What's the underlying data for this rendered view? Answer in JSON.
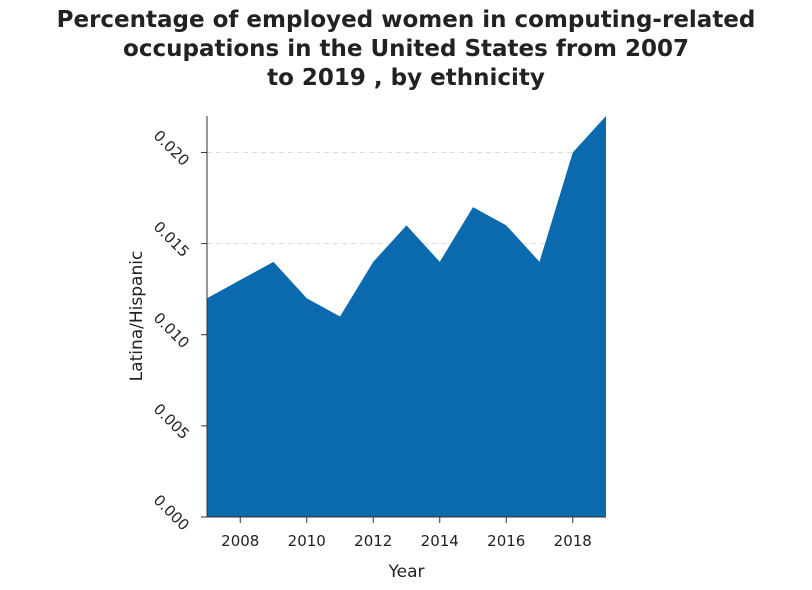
{
  "chart_data": {
    "type": "area",
    "title_lines": [
      "Percentage of employed women in computing-related",
      "occupations in the United States from 2007",
      "to 2019 , by ethnicity"
    ],
    "xlabel": "Year",
    "ylabel": "Latina/Hispanic",
    "x": [
      2007,
      2008,
      2009,
      2010,
      2011,
      2012,
      2013,
      2014,
      2015,
      2016,
      2017,
      2018,
      2019
    ],
    "series": [
      {
        "values": [
          0.012,
          0.013,
          0.014,
          0.012,
          0.011,
          0.014,
          0.016,
          0.014,
          0.017,
          0.016,
          0.014,
          0.02,
          0.022
        ]
      }
    ],
    "xlim": [
      2007,
      2019
    ],
    "ylim": [
      0,
      0.022
    ],
    "xticks": [
      2008,
      2010,
      2012,
      2014,
      2016,
      2018
    ],
    "xtick_labels": [
      "2008",
      "2010",
      "2012",
      "2014",
      "2016",
      "2018"
    ],
    "yticks": [
      0,
      0.005,
      0.01,
      0.015,
      0.02
    ],
    "ytick_labels": [
      "0.000",
      "0.005",
      "0.010",
      "0.015",
      "0.020"
    ],
    "grid": true,
    "colors": {
      "fill": "#0b6aad",
      "grid": "#dddddd",
      "axis": "#333333"
    }
  }
}
